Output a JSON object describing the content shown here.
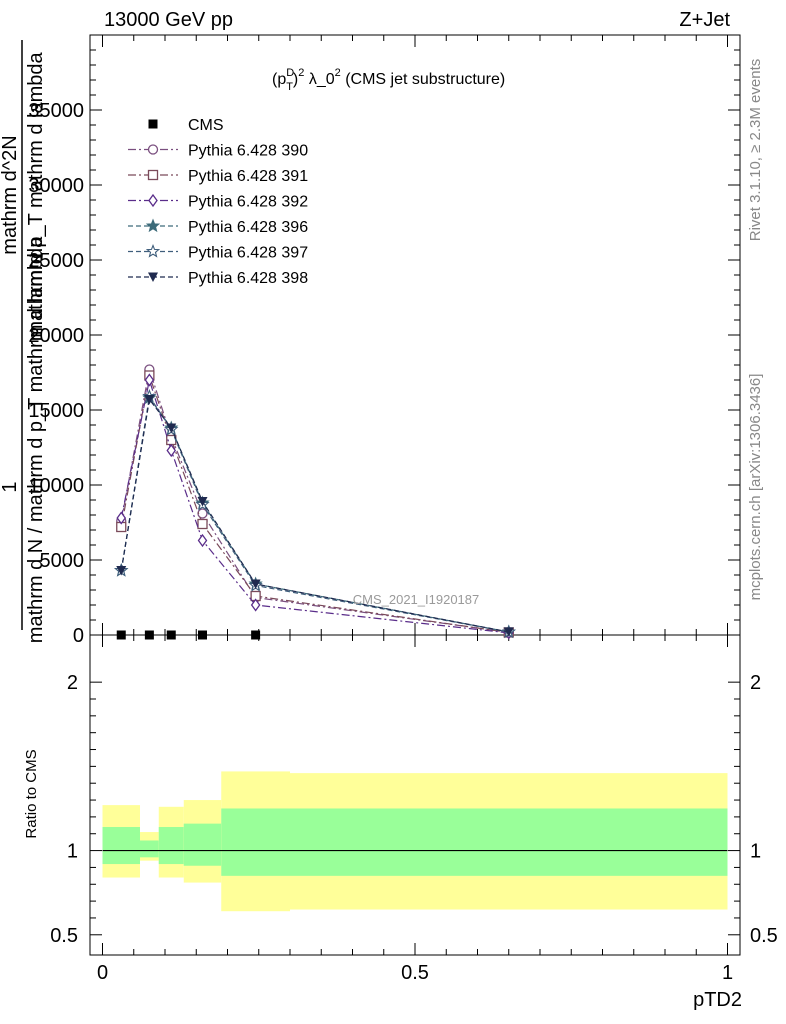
{
  "header": {
    "left": "13000 GeV pp",
    "right": "Z+Jet"
  },
  "plot_title": {
    "p": "(p",
    "sup1": "D",
    "sub1": "T",
    "close": ")",
    "sup2": "2",
    "rest": " λ_0",
    "sup3": "2",
    "tail": " (CMS jet substructure)"
  },
  "ylabel_main": {
    "line1": "1",
    "line2": "mathrm d N / mathrm d p_T mathrm d lambda",
    "line3a": "mathrm d^2N",
    "line3b": "mathrm d p_T mathrm d lambda"
  },
  "side_labels": {
    "rivet": "Rivet 3.1.10, ≥ 2.3M events",
    "mcplots": "mcplots.cern.ch [arXiv:1306.3436]"
  },
  "watermark": "CMS_2021_I1920187",
  "ratio": {
    "ylabel": "Ratio to CMS",
    "xlabel": "pTD2"
  },
  "colors": {
    "cms": "#000000",
    "p390": "#7a4f7f",
    "p391": "#7a4a5a",
    "p392": "#5a2d8a",
    "p396": "#3d6b7a",
    "p397": "#3f5e7c",
    "p398": "#1f2a4f",
    "band_inner": "#99ff99",
    "band_outer": "#ffff99"
  },
  "chart_data": {
    "type": "line",
    "xlim": [
      -0.02,
      1.02
    ],
    "ylim": [
      0,
      40000
    ],
    "yticks": [
      0,
      5000,
      10000,
      15000,
      20000,
      25000,
      30000,
      35000
    ],
    "xticks": [
      0,
      0.5,
      1
    ],
    "xticklabels": [
      "0",
      "0.5",
      "1"
    ],
    "legend_position": "top-left",
    "series": [
      {
        "name": "CMS",
        "marker": "square",
        "colorKey": "cms",
        "dash": "",
        "x": [
          0.03,
          0.075,
          0.11,
          0.16,
          0.245
        ],
        "y": [
          0,
          0,
          0,
          0,
          0
        ]
      },
      {
        "name": "Pythia 6.428 390",
        "marker": "circle-open",
        "colorKey": "p390",
        "dash": "8,3,2,3",
        "x": [
          0.03,
          0.075,
          0.11,
          0.16,
          0.245,
          0.65
        ],
        "y": [
          7600,
          17700,
          13200,
          8100,
          2500,
          180
        ]
      },
      {
        "name": "Pythia 6.428 391",
        "marker": "square-open",
        "colorKey": "p391",
        "dash": "8,3,2,3",
        "x": [
          0.03,
          0.075,
          0.11,
          0.16,
          0.245,
          0.65
        ],
        "y": [
          7200,
          17300,
          13000,
          7400,
          2600,
          170
        ]
      },
      {
        "name": "Pythia 6.428 392",
        "marker": "diamond-open",
        "colorKey": "p392",
        "dash": "8,3,2,3",
        "x": [
          0.03,
          0.075,
          0.11,
          0.16,
          0.245,
          0.65
        ],
        "y": [
          7800,
          17000,
          12300,
          6300,
          2000,
          140
        ]
      },
      {
        "name": "Pythia 6.428 396",
        "marker": "star",
        "colorKey": "p396",
        "dash": "5,3",
        "x": [
          0.03,
          0.075,
          0.11,
          0.16,
          0.245,
          0.65
        ],
        "y": [
          4300,
          15800,
          13800,
          8800,
          3400,
          200
        ]
      },
      {
        "name": "Pythia 6.428 397",
        "marker": "star-open",
        "colorKey": "p397",
        "dash": "5,3",
        "x": [
          0.03,
          0.075,
          0.11,
          0.16,
          0.245,
          0.65
        ],
        "y": [
          4300,
          15900,
          13700,
          8700,
          3300,
          200
        ]
      },
      {
        "name": "Pythia 6.428 398",
        "marker": "triangle-down",
        "colorKey": "p398",
        "dash": "5,3",
        "x": [
          0.03,
          0.075,
          0.11,
          0.16,
          0.245,
          0.65
        ],
        "y": [
          4300,
          15700,
          13800,
          8900,
          3400,
          210
        ]
      }
    ],
    "ratio_panel": {
      "ylim": [
        0.38,
        2.28
      ],
      "yticks": [
        0.5,
        1,
        2
      ],
      "yticklabels": [
        "0.5",
        "1",
        "2"
      ],
      "reference": 1,
      "bins": [
        {
          "x0": 0.0,
          "x1": 0.06,
          "inner": [
            0.92,
            1.14
          ],
          "outer": [
            0.84,
            1.27
          ]
        },
        {
          "x0": 0.06,
          "x1": 0.09,
          "inner": [
            0.96,
            1.06
          ],
          "outer": [
            0.94,
            1.11
          ]
        },
        {
          "x0": 0.09,
          "x1": 0.13,
          "inner": [
            0.92,
            1.14
          ],
          "outer": [
            0.84,
            1.26
          ]
        },
        {
          "x0": 0.13,
          "x1": 0.19,
          "inner": [
            0.91,
            1.16
          ],
          "outer": [
            0.81,
            1.3
          ]
        },
        {
          "x0": 0.19,
          "x1": 0.3,
          "inner": [
            0.85,
            1.25
          ],
          "outer": [
            0.64,
            1.47
          ]
        },
        {
          "x0": 0.3,
          "x1": 1.0,
          "inner": [
            0.85,
            1.25
          ],
          "outer": [
            0.65,
            1.46
          ]
        }
      ]
    }
  }
}
